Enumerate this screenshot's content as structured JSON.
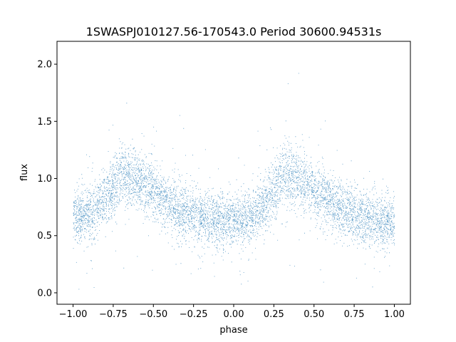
{
  "chart_data": {
    "type": "scatter",
    "title": "1SWASPJ010127.56-170543.0 Period 30600.94531s",
    "xlabel": "phase",
    "ylabel": "flux",
    "xlim": [
      -1.1,
      1.1
    ],
    "ylim": [
      -0.1,
      2.2
    ],
    "xticks": [
      -1.0,
      -0.75,
      -0.5,
      -0.25,
      0.0,
      0.25,
      0.5,
      0.75,
      1.0
    ],
    "xtick_labels": [
      "−1.00",
      "−0.75",
      "−0.50",
      "−0.25",
      "0.00",
      "0.25",
      "0.50",
      "0.75",
      "1.00"
    ],
    "yticks": [
      0.0,
      0.5,
      1.0,
      1.5,
      2.0
    ],
    "ytick_labels": [
      "0.0",
      "0.5",
      "1.0",
      "1.5",
      "2.0"
    ],
    "grid": false,
    "marker_color": "#1f77b4",
    "series": [
      {
        "profile_phase": [
          -1.0,
          -0.9,
          -0.8,
          -0.7,
          -0.6,
          -0.5,
          -0.4,
          -0.3,
          -0.2,
          -0.1,
          0.0,
          0.1,
          0.2,
          0.3,
          0.4,
          0.5,
          0.6,
          0.7,
          0.8,
          0.9,
          1.0
        ],
        "profile_flux": [
          0.66,
          0.7,
          0.82,
          1.05,
          1.0,
          0.88,
          0.78,
          0.7,
          0.66,
          0.64,
          0.62,
          0.64,
          0.78,
          1.05,
          1.0,
          0.88,
          0.78,
          0.7,
          0.66,
          0.64,
          0.62
        ],
        "flux_scatter_sd": 0.13,
        "point_count": 26000,
        "flux_range": [
          0.0,
          2.1
        ]
      }
    ]
  }
}
